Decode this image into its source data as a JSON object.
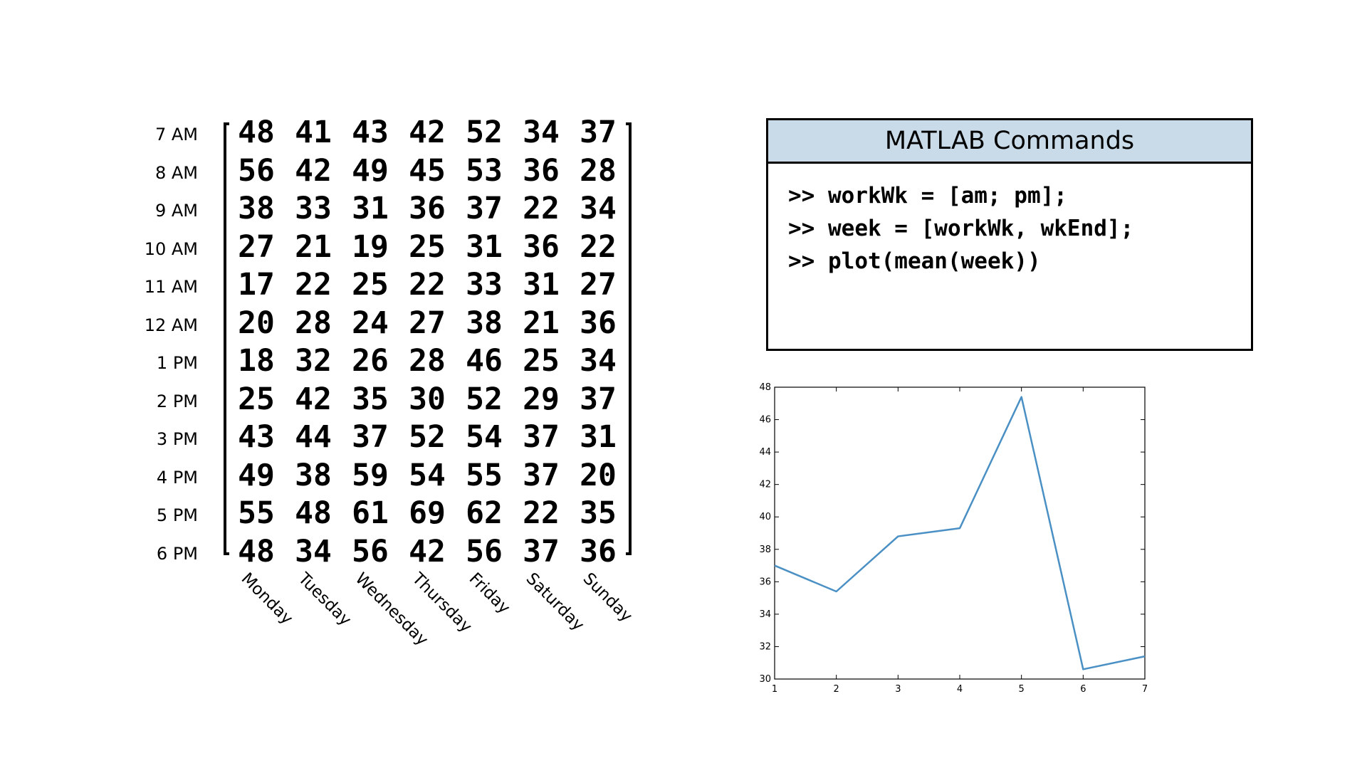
{
  "matrix": {
    "row_labels": [
      "7 AM",
      "8 AM",
      "9 AM",
      "10 AM",
      "11 AM",
      "12 AM",
      "1 PM",
      "2 PM",
      "3 PM",
      "4 PM",
      "5 PM",
      "6 PM"
    ],
    "col_labels": [
      "Monday",
      "Tuesday",
      "Wednesday",
      "Thursday",
      "Friday",
      "Saturday",
      "Sunday"
    ],
    "rows": [
      [
        "48",
        "41",
        "43",
        "42",
        "52",
        "34",
        "37"
      ],
      [
        "56",
        "42",
        "49",
        "45",
        "53",
        "36",
        "28"
      ],
      [
        "38",
        "33",
        "31",
        "36",
        "37",
        "22",
        "34"
      ],
      [
        "27",
        "21",
        "19",
        "25",
        "31",
        "36",
        "22"
      ],
      [
        "17",
        "22",
        "25",
        "22",
        "33",
        "31",
        "27"
      ],
      [
        "20",
        "28",
        "24",
        "27",
        "38",
        "21",
        "36"
      ],
      [
        "18",
        "32",
        "26",
        "28",
        "46",
        "25",
        "34"
      ],
      [
        "25",
        "42",
        "35",
        "30",
        "52",
        "29",
        "37"
      ],
      [
        "43",
        "44",
        "37",
        "52",
        "54",
        "37",
        "31"
      ],
      [
        "49",
        "38",
        "59",
        "54",
        "55",
        "37",
        "20"
      ],
      [
        "55",
        "48",
        "61",
        "69",
        "62",
        "22",
        "35"
      ],
      [
        "48",
        "34",
        "56",
        "42",
        "56",
        "37",
        "36"
      ]
    ]
  },
  "commands": {
    "title": "MATLAB Commands",
    "lines": [
      ">> workWk = [am; pm];",
      ">> week = [workWk, wkEnd];",
      ">> plot(mean(week))"
    ]
  },
  "chart_data": {
    "type": "line",
    "x": [
      1,
      2,
      3,
      4,
      5,
      6,
      7
    ],
    "series": [
      {
        "values": [
          37.0,
          35.4,
          38.8,
          39.3,
          47.4,
          30.6,
          31.4
        ]
      }
    ],
    "xlim": [
      1,
      7
    ],
    "ylim": [
      30,
      48
    ],
    "xticks": [
      "1",
      "2",
      "3",
      "4",
      "5",
      "6",
      "7"
    ],
    "yticks": [
      "30",
      "32",
      "34",
      "36",
      "38",
      "40",
      "42",
      "44",
      "46",
      "48"
    ],
    "grid": false,
    "colors": {
      "line": "#4a90c4",
      "axes": "#000000"
    }
  }
}
